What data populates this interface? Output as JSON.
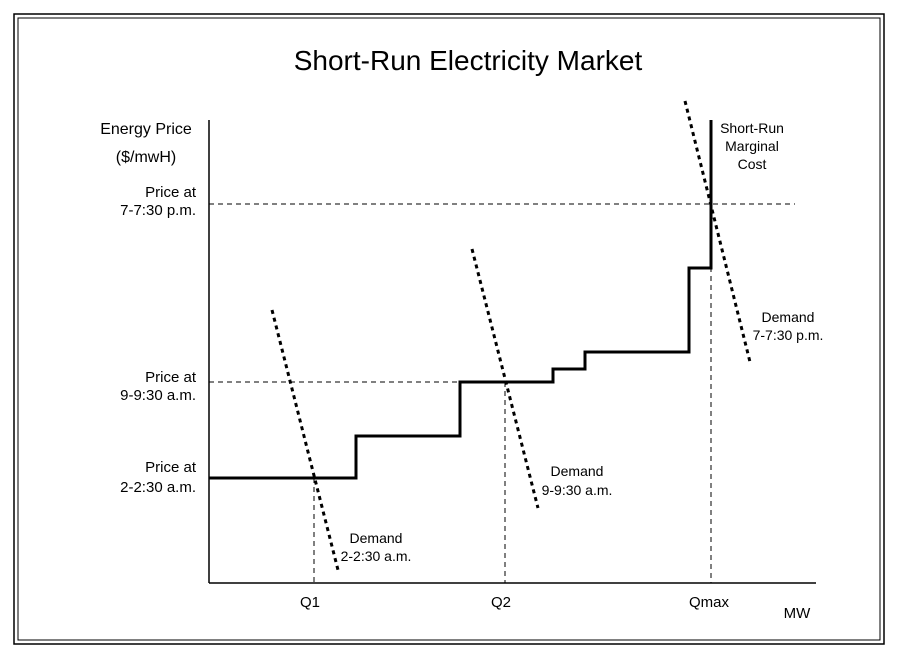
{
  "title": "Short-Run Electricity Market",
  "y_axis_label_line1": "Energy Price",
  "y_axis_label_line2": "($/mwH)",
  "x_axis_label": "MW",
  "price_levels": [
    {
      "line1": "Price at",
      "line2": "7-7:30 p.m."
    },
    {
      "line1": "Price at",
      "line2": "9-9:30 a.m."
    },
    {
      "line1": "Price at",
      "line2": "2-2:30 a.m."
    }
  ],
  "quantity_labels": [
    "Q1",
    "Q2",
    "Qmax"
  ],
  "demand_curves": [
    {
      "line1": "Demand",
      "line2": "2-2:30 a.m."
    },
    {
      "line1": "Demand",
      "line2": "9-9:30 a.m."
    },
    {
      "line1": "Demand",
      "line2": "7-7:30 p.m."
    }
  ],
  "supply_curve_label": [
    "Short-Run",
    "Marginal",
    "Cost"
  ]
}
